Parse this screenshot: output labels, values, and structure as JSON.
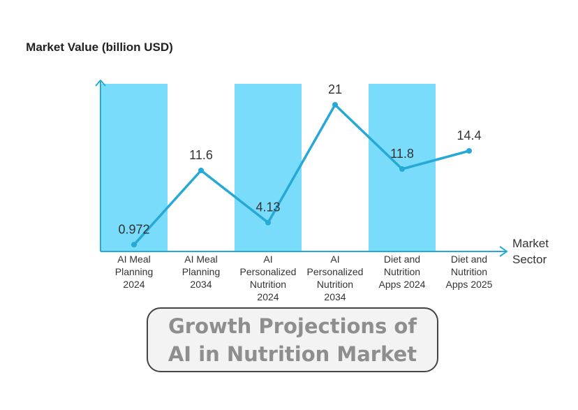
{
  "chart_data": {
    "type": "line",
    "title": "Growth Projections of AI in Nutrition Market",
    "ylabel": "Market Value (billion USD)",
    "xlabel": "Market Sector",
    "categories": [
      [
        "AI Meal",
        "Planning",
        "2024"
      ],
      [
        "AI Meal",
        "Planning",
        "2034"
      ],
      [
        "AI",
        "Personalized",
        "Nutrition",
        "2024"
      ],
      [
        "AI",
        "Personalized",
        "Nutrition",
        "2034"
      ],
      [
        "Diet and",
        "Nutrition",
        "Apps 2024"
      ],
      [
        "Diet and",
        "Nutrition",
        "Apps 2025"
      ]
    ],
    "values": [
      0.972,
      11.6,
      4.13,
      21,
      11.8,
      14.4
    ],
    "value_labels": [
      "0.972",
      "11.6",
      "4.13",
      "21",
      "11.8",
      "14.4"
    ],
    "ylim": [
      0,
      24
    ],
    "shaded_bands": [
      0,
      2,
      4
    ],
    "grid": false,
    "colors": {
      "line": "#26a9d6",
      "band": "#79dcfa",
      "axis": "#26a9d6",
      "text": "#333333",
      "title_text": "#8e8e8e"
    }
  }
}
